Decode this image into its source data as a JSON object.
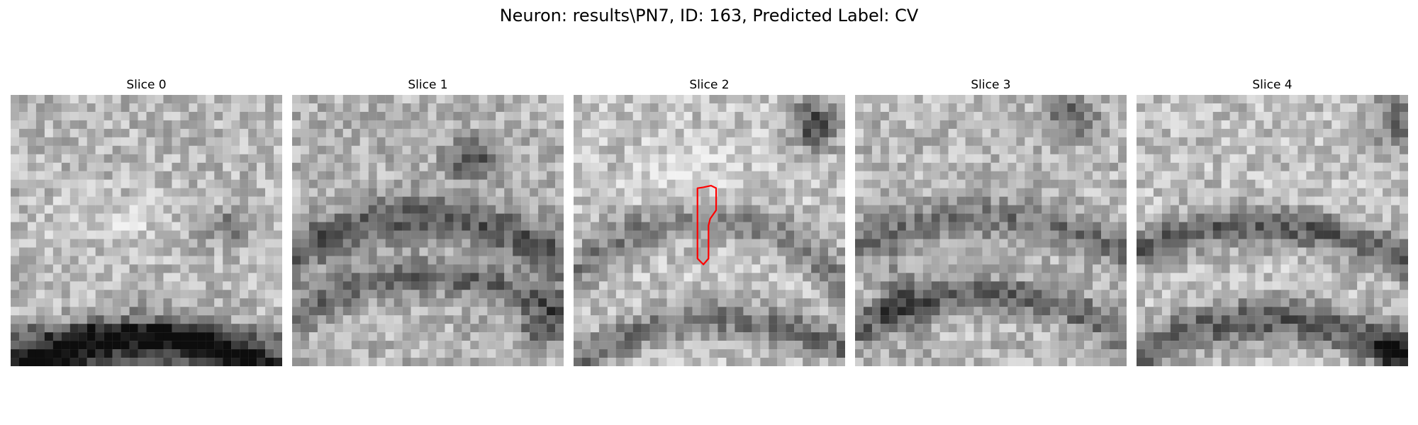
{
  "figure": {
    "title": "Neuron: results\\PN7, ID: 163, Predicted Label: CV"
  },
  "panels": [
    {
      "title": "Slice 0",
      "has_contour": false
    },
    {
      "title": "Slice 1",
      "has_contour": false
    },
    {
      "title": "Slice 2",
      "has_contour": true
    },
    {
      "title": "Slice 3",
      "has_contour": false
    },
    {
      "title": "Slice 4",
      "has_contour": false
    }
  ],
  "colors": {
    "background": "#ffffff",
    "contour": "#ff0000",
    "colormap": "gray"
  }
}
